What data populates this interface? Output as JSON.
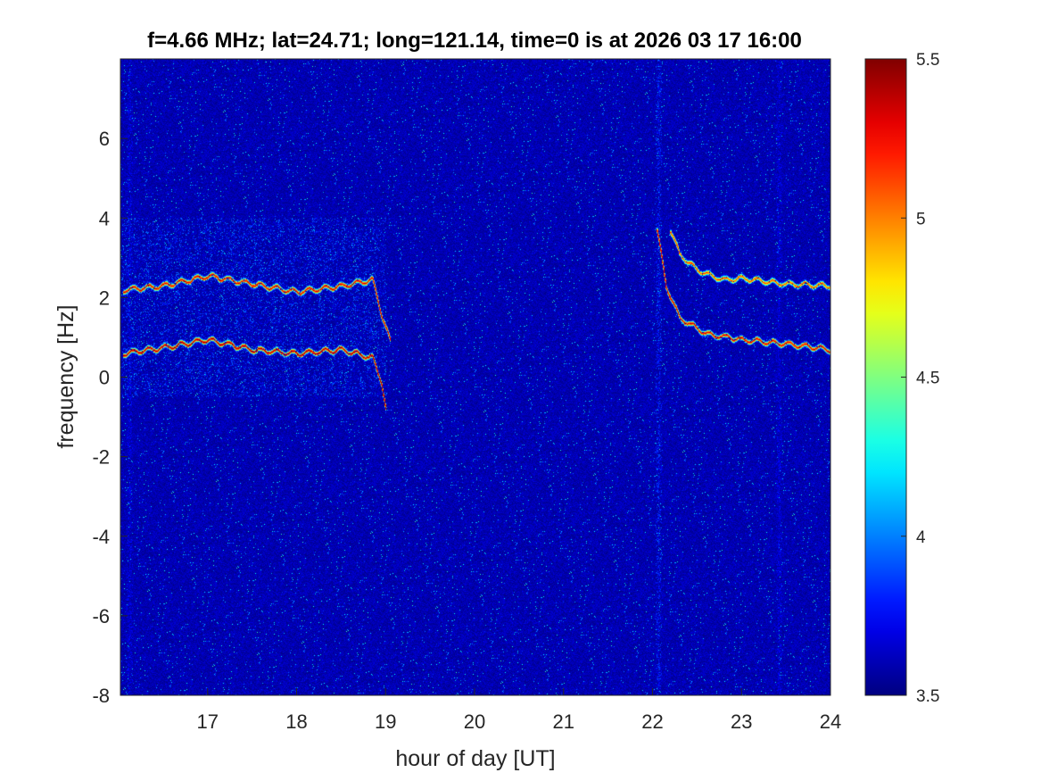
{
  "chart_data": {
    "type": "heatmap",
    "title": "f=4.66 MHz;  lat=24.71; long=121.14, time=0 is at 2026 03 17 16:00",
    "xlabel": "hour of day [UT]",
    "ylabel": "frequency [Hz]",
    "xlim": [
      16.02,
      24.0
    ],
    "ylim": [
      -8,
      8
    ],
    "xticks": [
      17,
      18,
      19,
      20,
      21,
      22,
      23,
      24
    ],
    "xtick_labels": [
      "17",
      "18",
      "19",
      "20",
      "21",
      "22",
      "23",
      "24"
    ],
    "yticks": [
      -8,
      -6,
      -4,
      -2,
      0,
      2,
      4,
      6
    ],
    "ytick_labels": [
      "-8",
      "-6",
      "-4",
      "-2",
      "0",
      "2",
      "4",
      "6"
    ],
    "colorbar": {
      "colormap": "jet",
      "range": [
        3.5,
        5.5
      ],
      "ticks": [
        3.5,
        4,
        4.5,
        5,
        5.5
      ],
      "tick_labels": [
        "3.5",
        "4",
        "4.5",
        "5",
        "5.5"
      ]
    },
    "background_level": 3.6,
    "traces": [
      {
        "hours": [
          16.05,
          16.5,
          17.0,
          17.5,
          18.0,
          18.5,
          18.85,
          18.95,
          19.0
        ],
        "hz": [
          0.6,
          0.75,
          0.95,
          0.7,
          0.6,
          0.7,
          0.5,
          -0.1,
          -0.8
        ],
        "level": 5.4
      },
      {
        "hours": [
          16.05,
          16.5,
          17.0,
          17.5,
          18.0,
          18.5,
          18.85,
          18.95,
          19.05
        ],
        "hz": [
          2.2,
          2.3,
          2.55,
          2.35,
          2.15,
          2.3,
          2.45,
          1.6,
          0.9
        ],
        "level": 5.3
      },
      {
        "hours": [
          22.05,
          22.15,
          22.3,
          22.6,
          23.0,
          23.5,
          24.0
        ],
        "hz": [
          3.7,
          2.3,
          1.5,
          1.1,
          0.95,
          0.85,
          0.7
        ],
        "level": 5.3
      },
      {
        "hours": [
          22.2,
          22.3,
          22.5,
          22.8,
          23.0,
          23.5,
          24.0
        ],
        "hz": [
          3.7,
          3.1,
          2.7,
          2.45,
          2.5,
          2.35,
          2.3
        ],
        "level": 5.1
      }
    ],
    "vertical_streaks": [
      {
        "hour": 22.07,
        "level": 3.85
      },
      {
        "hour": 23.42,
        "level": 3.75
      },
      {
        "hour": 16.12,
        "level": 3.75
      }
    ],
    "diffuse_regions": [
      {
        "hours": [
          16.05,
          19.0
        ],
        "hz": [
          -0.5,
          4.0
        ],
        "level": 3.95
      }
    ]
  }
}
